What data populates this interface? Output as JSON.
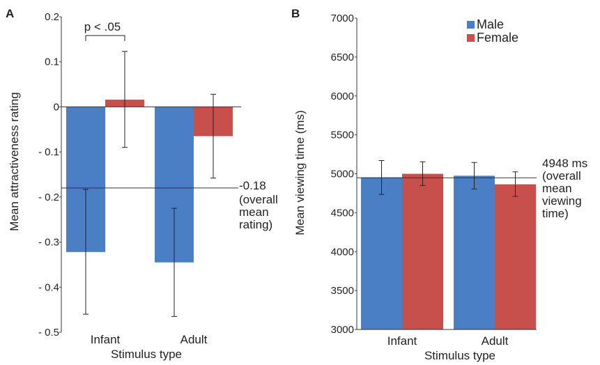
{
  "chart_data": [
    {
      "panel_label": "A",
      "type": "bar",
      "xlabel": "Stimulus type",
      "ylabel": "Mean attractiveness rating",
      "ylim": [
        -0.5,
        0.2
      ],
      "yticks": [
        0.2,
        0.1,
        0,
        -0.1,
        -0.2,
        -0.3,
        -0.4,
        -0.5
      ],
      "ytick_labels": [
        "0.2",
        "0.1",
        "0",
        "- 0.1",
        "- 0.2",
        "- 0.3",
        "- 0.4",
        "- 0.5"
      ],
      "categories": [
        "Infant",
        "Adult"
      ],
      "series": [
        {
          "name": "Male",
          "color": "#4a7fc6",
          "values": [
            -0.322,
            -0.345
          ],
          "error_low": [
            -0.46,
            -0.465
          ],
          "error_high": [
            -0.183,
            -0.225
          ]
        },
        {
          "name": "Female",
          "color": "#c8504c",
          "values": [
            0.016,
            -0.065
          ],
          "error_low": [
            -0.09,
            -0.158
          ],
          "error_high": [
            0.123,
            0.028
          ]
        }
      ],
      "reference_line": {
        "value": -0.18,
        "label_lines": [
          "-0.18",
          "(overall",
          "mean",
          "rating)"
        ]
      },
      "significance": {
        "label": "p < .05"
      },
      "grid": false
    },
    {
      "panel_label": "B",
      "type": "bar",
      "xlabel": "Stimulus type",
      "ylabel": "Mean viewing time (ms)",
      "ylim": [
        3000,
        7000
      ],
      "yticks": [
        7000,
        6500,
        6000,
        5500,
        5000,
        4500,
        4000,
        3500,
        3000
      ],
      "ytick_labels": [
        "7000",
        "6500",
        "6000",
        "5500",
        "5000",
        "4500",
        "4000",
        "3500",
        "3000"
      ],
      "categories": [
        "Infant",
        "Adult"
      ],
      "series": [
        {
          "name": "Male",
          "color": "#4a7fc6",
          "values": [
            4955,
            4975
          ],
          "error_low": [
            4735,
            4805
          ],
          "error_high": [
            5170,
            5145
          ]
        },
        {
          "name": "Female",
          "color": "#c8504c",
          "values": [
            5000,
            4865
          ],
          "error_low": [
            4850,
            4710
          ],
          "error_high": [
            5155,
            5025
          ]
        }
      ],
      "reference_line": {
        "value": 4948,
        "label_lines": [
          "4948 ms",
          "(overall",
          "mean",
          "viewing",
          "time)"
        ]
      },
      "legend": {
        "position": "top-right",
        "entries": [
          "Male",
          "Female"
        ]
      },
      "grid": false
    }
  ]
}
